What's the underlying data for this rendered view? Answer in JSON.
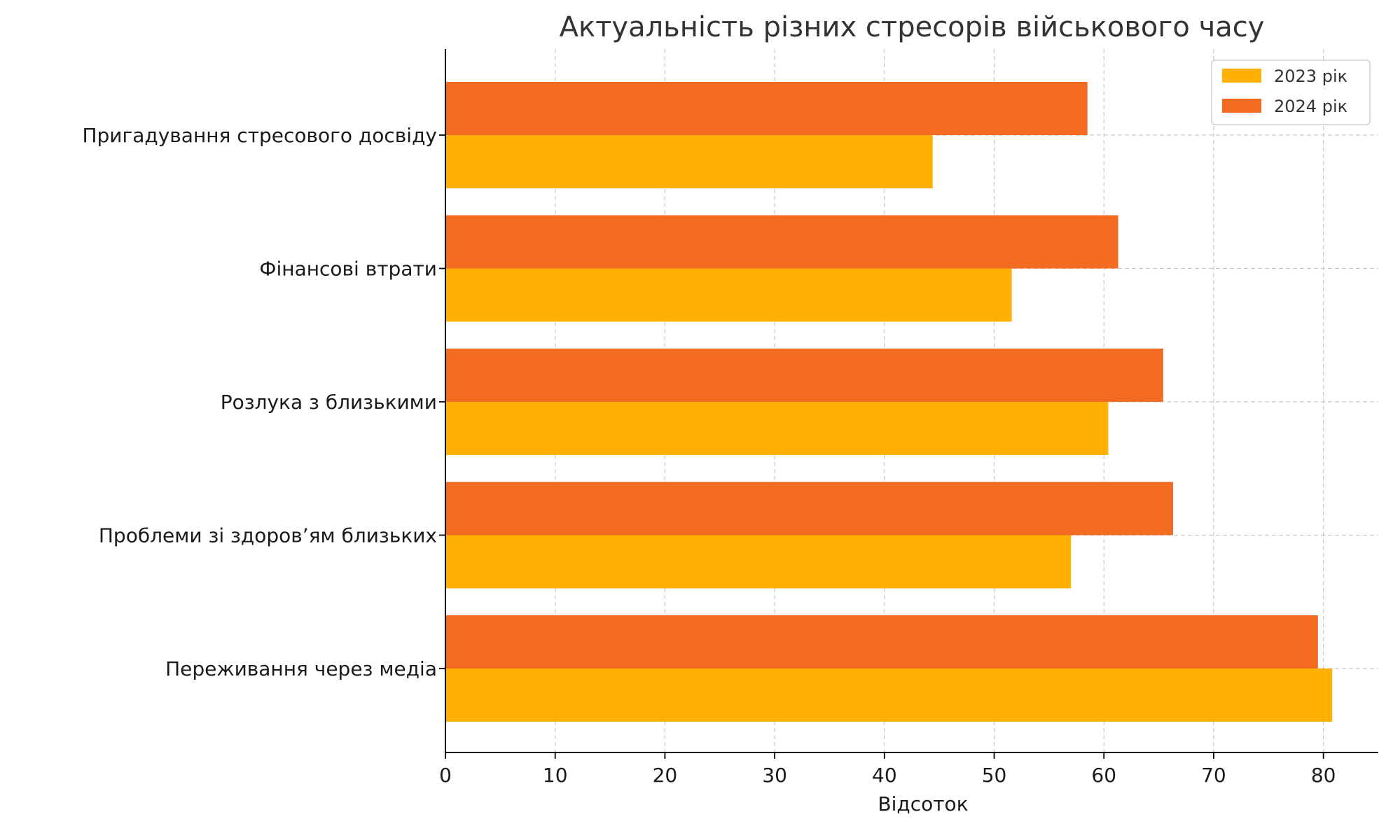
{
  "chart_data": {
    "type": "bar",
    "orientation": "horizontal",
    "title": "Актуальність різних стресорів військового часу",
    "xlabel": "Відсоток",
    "ylabel": "",
    "xlim": [
      0,
      85
    ],
    "x_ticks": [
      0,
      10,
      20,
      30,
      40,
      50,
      60,
      70,
      80
    ],
    "grid": true,
    "legend_position": "top-right",
    "categories": [
      "Пригадування стресового досвіду",
      "Фінансові втрати",
      "Розлука з близькими",
      "Проблеми зі здоров’ям близьких",
      "Переживання через медіа"
    ],
    "series": [
      {
        "name": "2023 рік",
        "color": "#FFB000",
        "values": [
          44.4,
          51.6,
          60.4,
          57.0,
          80.8
        ]
      },
      {
        "name": "2024 рік",
        "color": "#F26B21",
        "values": [
          58.5,
          61.3,
          65.4,
          66.3,
          79.5
        ]
      }
    ]
  }
}
